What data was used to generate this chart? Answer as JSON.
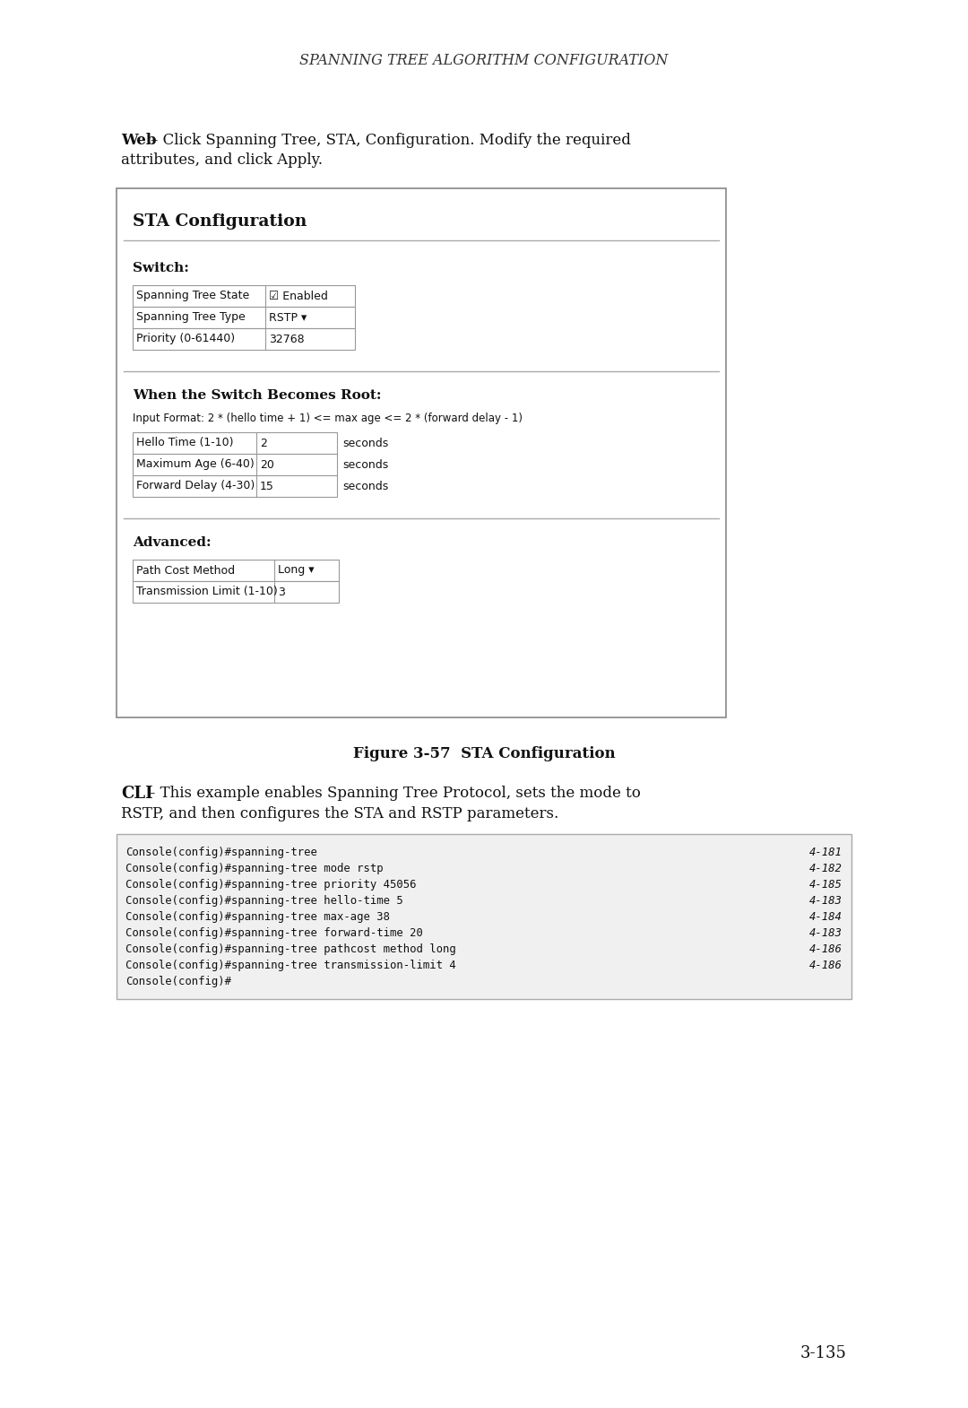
{
  "page_title": "SPANNING TREE ALGORITHM CONFIGURATION",
  "page_number": "3-135",
  "bg_color": "#ffffff",
  "figure_caption": "Figure 3-57  STA Configuration",
  "panel_title": "STA Configuration",
  "section1_title": "Switch:",
  "switch_rows": [
    {
      "label": "Spanning Tree State",
      "value": "☑ Enabled",
      "type": "checkbox"
    },
    {
      "label": "Spanning Tree Type",
      "value": "RSTP ▾",
      "type": "dropdown"
    },
    {
      "label": "Priority (0-61440)",
      "value": "32768",
      "type": "input"
    }
  ],
  "section2_title": "When the Switch Becomes Root:",
  "section2_format": "Input Format: 2 * (hello time + 1) <= max age <= 2 * (forward delay - 1)",
  "root_rows": [
    {
      "label": "Hello Time (1-10)",
      "value": "2",
      "unit": "seconds"
    },
    {
      "label": "Maximum Age (6-40)",
      "value": "20",
      "unit": "seconds"
    },
    {
      "label": "Forward Delay (4-30)",
      "value": "15",
      "unit": "seconds"
    }
  ],
  "section3_title": "Advanced:",
  "advanced_rows": [
    {
      "label": "Path Cost Method",
      "value": "Long ▾",
      "type": "dropdown"
    },
    {
      "label": "Transmission Limit (1-10)",
      "value": "3",
      "type": "input"
    }
  ],
  "cli_lines": [
    {
      "cmd": "Console(config)#spanning-tree",
      "ref": "4-181"
    },
    {
      "cmd": "Console(config)#spanning-tree mode rstp",
      "ref": "4-182"
    },
    {
      "cmd": "Console(config)#spanning-tree priority 45056",
      "ref": "4-185"
    },
    {
      "cmd": "Console(config)#spanning-tree hello-time 5",
      "ref": "4-183"
    },
    {
      "cmd": "Console(config)#spanning-tree max-age 38",
      "ref": "4-184"
    },
    {
      "cmd": "Console(config)#spanning-tree forward-time 20",
      "ref": "4-183"
    },
    {
      "cmd": "Console(config)#spanning-tree pathcost method long",
      "ref": "4-186"
    },
    {
      "cmd": "Console(config)#spanning-tree transmission-limit 4",
      "ref": "4-186"
    },
    {
      "cmd": "Console(config)#",
      "ref": ""
    }
  ],
  "panel_border_color": "#888888",
  "table_border_color": "#999999",
  "code_bg": "#f0f0f0",
  "code_border": "#aaaaaa",
  "divider_color": "#aaaaaa"
}
